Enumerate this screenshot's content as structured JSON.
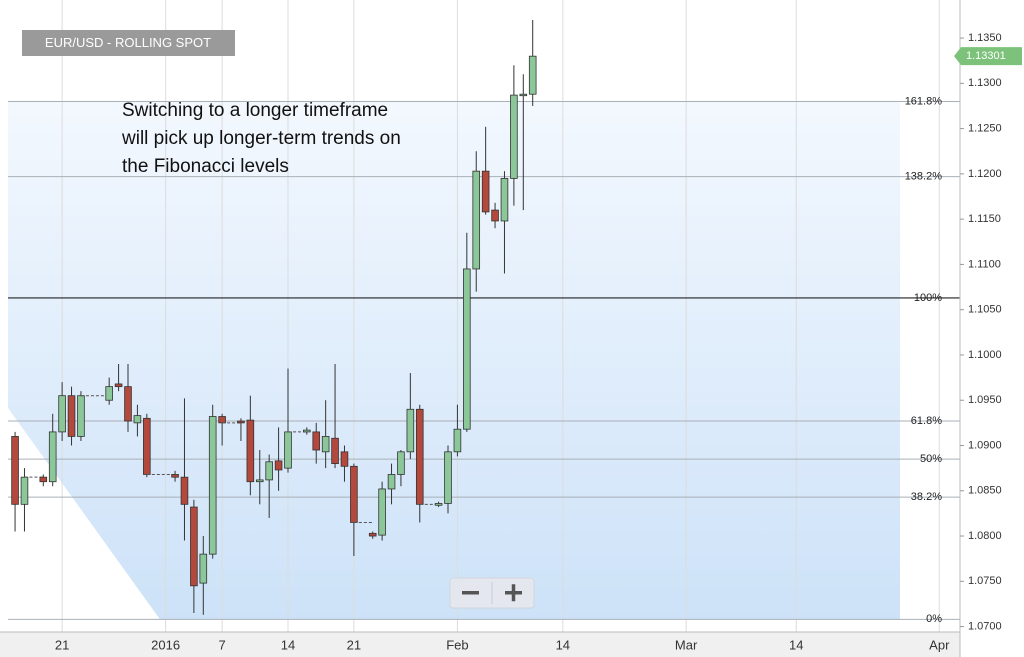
{
  "chart_data": {
    "type": "candlestick",
    "title": "EUR/USD - ROLLING SPOT",
    "annotation": [
      "Switching to a longer timeframe",
      "will pick up longer-term trends on",
      "the Fibonacci levels"
    ],
    "x": [
      0,
      1,
      3,
      4,
      5,
      6,
      7,
      10,
      11,
      12,
      13,
      14,
      17,
      18,
      19,
      20,
      21,
      22,
      24,
      25,
      26,
      27,
      28,
      29,
      31,
      32,
      33,
      34,
      35,
      36,
      38,
      39,
      40,
      41,
      42,
      43,
      45,
      46,
      47,
      48,
      49,
      50,
      51,
      52,
      53,
      54,
      55
    ],
    "open": [
      1.091,
      1.0835,
      1.0865,
      1.086,
      1.0915,
      1.0955,
      1.091,
      1.095,
      1.0968,
      1.0965,
      1.0925,
      1.093,
      1.0868,
      1.0865,
      1.0832,
      1.0748,
      1.078,
      1.0932,
      1.0927,
      1.0928,
      1.086,
      1.0862,
      1.0883,
      1.0875,
      1.0915,
      1.0915,
      1.0893,
      1.0908,
      1.0893,
      1.0877,
      1.0803,
      1.0801,
      1.0852,
      1.0868,
      1.0893,
      1.094,
      1.0834,
      1.0836,
      1.0893,
      1.0918,
      1.1095,
      1.1203,
      1.116,
      1.1148,
      1.1195,
      1.1287,
      1.1288
    ],
    "high": [
      1.0915,
      1.0875,
      1.0868,
      1.0935,
      1.097,
      1.0965,
      1.096,
      1.0975,
      1.099,
      1.099,
      1.0945,
      1.0935,
      1.0872,
      1.0952,
      1.084,
      1.08,
      1.0945,
      1.0935,
      1.093,
      1.0955,
      1.0895,
      1.089,
      1.092,
      1.0985,
      1.092,
      1.0925,
      1.095,
      1.099,
      1.09,
      1.088,
      1.0805,
      1.086,
      1.088,
      1.0895,
      1.098,
      1.0945,
      1.0838,
      1.09,
      1.0945,
      1.1135,
      1.1225,
      1.1252,
      1.1168,
      1.1203,
      1.132,
      1.131,
      1.137
    ],
    "low": [
      1.0805,
      1.0805,
      1.0855,
      1.0855,
      1.0905,
      1.09,
      1.0905,
      1.0945,
      1.096,
      1.0915,
      1.091,
      1.0865,
      1.086,
      1.0795,
      1.0715,
      1.0713,
      1.0775,
      1.09,
      1.0905,
      1.0845,
      1.0835,
      1.082,
      1.085,
      1.087,
      1.0912,
      1.088,
      1.0875,
      1.0875,
      1.086,
      1.0778,
      1.0797,
      1.0795,
      1.0835,
      1.0855,
      1.0885,
      1.0815,
      1.0832,
      1.0825,
      1.0888,
      1.0915,
      1.107,
      1.1155,
      1.114,
      1.109,
      1.1165,
      1.116,
      1.1275
    ],
    "close": [
      1.0835,
      1.0865,
      1.086,
      1.0915,
      1.0955,
      1.091,
      1.0955,
      1.0965,
      1.0965,
      1.0927,
      1.0933,
      1.0868,
      1.0865,
      1.0835,
      1.0745,
      1.078,
      1.0932,
      1.0925,
      1.0925,
      1.086,
      1.0862,
      1.0882,
      1.0873,
      1.0915,
      1.0917,
      1.0895,
      1.091,
      1.088,
      1.0877,
      1.0815,
      1.08,
      1.0852,
      1.0868,
      1.0893,
      1.094,
      1.0835,
      1.0836,
      1.0893,
      1.0918,
      1.1095,
      1.1203,
      1.1158,
      1.1148,
      1.1195,
      1.1287,
      1.1288,
      1.133
    ],
    "up_color": "#8cc79a",
    "down_color": "#b3483c",
    "last_price": 1.13301,
    "last_price_color": "#7cc27a",
    "fib_levels": [
      {
        "value": 1.0708,
        "label": "0%"
      },
      {
        "value": 1.0843,
        "label": "38.2%"
      },
      {
        "value": 1.0885,
        "label": "50%"
      },
      {
        "value": 1.0927,
        "label": "61.8%"
      },
      {
        "value": 1.1063,
        "label": "100%"
      },
      {
        "value": 1.1197,
        "label": "138.2%"
      },
      {
        "value": 1.128,
        "label": "161.8%"
      }
    ],
    "xlim": [
      -0.75,
      100.4
    ],
    "xticks": [
      {
        "value": 5,
        "label": "21"
      },
      {
        "value": 16,
        "label": "2016"
      },
      {
        "value": 22,
        "label": "7"
      },
      {
        "value": 29,
        "label": "14"
      },
      {
        "value": 36,
        "label": "21"
      },
      {
        "value": 47,
        "label": "Feb"
      },
      {
        "value": 58.2,
        "label": "14"
      },
      {
        "value": 71.3,
        "label": "Mar"
      },
      {
        "value": 83,
        "label": "14"
      },
      {
        "value": 98.2,
        "label": "Apr"
      }
    ],
    "ylim": [
      1.0694,
      1.1381
    ],
    "yticks": [
      {
        "value": 1.07,
        "label": "1.0700"
      },
      {
        "value": 1.075,
        "label": "1.0750"
      },
      {
        "value": 1.08,
        "label": "1.0800"
      },
      {
        "value": 1.085,
        "label": "1.0850"
      },
      {
        "value": 1.09,
        "label": "1.0900"
      },
      {
        "value": 1.095,
        "label": "1.0950"
      },
      {
        "value": 1.1,
        "label": "1.1000"
      },
      {
        "value": 1.105,
        "label": "1.1050"
      },
      {
        "value": 1.11,
        "label": "1.1100"
      },
      {
        "value": 1.115,
        "label": "1.1150"
      },
      {
        "value": 1.12,
        "label": "1.1200"
      },
      {
        "value": 1.125,
        "label": "1.1250"
      },
      {
        "value": 1.13,
        "label": "1.1300"
      },
      {
        "value": 1.135,
        "label": "1.1350"
      }
    ],
    "xgrid": true
  }
}
